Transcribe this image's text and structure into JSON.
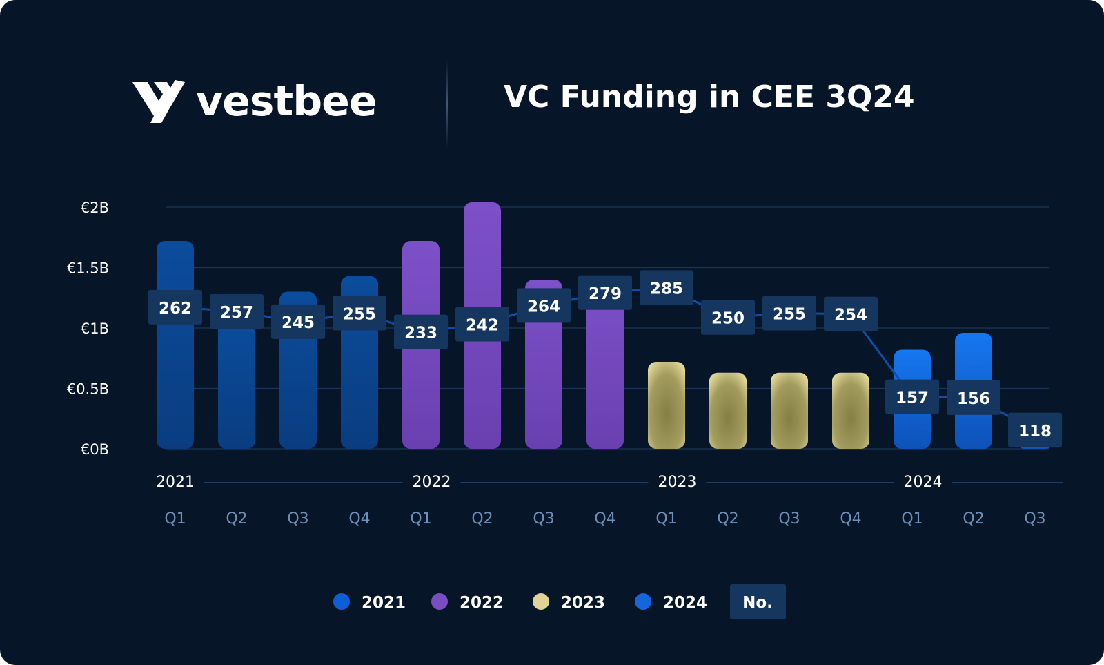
{
  "header": {
    "logo_text": "vestbee",
    "title": "VC Funding in CEE 3Q24"
  },
  "colors": {
    "background": "#061628",
    "2021": "#0b4a96",
    "2022": "#7a4ec2",
    "2023": "#c8bf7c",
    "2024": "#1572e8",
    "label_box": "#15365e",
    "line": "#0d4fa8"
  },
  "chart_data": {
    "type": "bar",
    "title": "VC Funding in CEE 3Q24",
    "y_tick_labels": [
      "€0B",
      "€0.5B",
      "€1B",
      "€1.5B",
      "€2B"
    ],
    "ylim": [
      0,
      2
    ],
    "y_ticks": [
      0,
      0.5,
      1,
      1.5,
      2
    ],
    "grid": true,
    "legend_position": "bottom-center",
    "categories": [
      "Q1",
      "Q2",
      "Q3",
      "Q4",
      "Q1",
      "Q2",
      "Q3",
      "Q4",
      "Q1",
      "Q2",
      "Q3",
      "Q4",
      "Q1",
      "Q2",
      "Q3"
    ],
    "years": [
      "2021",
      "2022",
      "2023",
      "2024"
    ],
    "bar_year_index": [
      0,
      0,
      0,
      0,
      1,
      1,
      1,
      1,
      2,
      2,
      2,
      2,
      3,
      3,
      3
    ],
    "series": [
      {
        "type": "bar",
        "unit": "€B",
        "values": [
          1.72,
          1.06,
          1.3,
          1.43,
          1.72,
          2.04,
          1.4,
          1.43,
          0.72,
          0.63,
          0.63,
          0.63,
          0.82,
          0.96,
          0.22
        ]
      },
      {
        "type": "line",
        "name": "No.",
        "values": [
          262,
          257,
          245,
          255,
          233,
          242,
          264,
          279,
          285,
          250,
          255,
          254,
          157,
          156,
          118
        ]
      }
    ],
    "legend": [
      "2021",
      "2022",
      "2023",
      "2024",
      "No."
    ]
  }
}
